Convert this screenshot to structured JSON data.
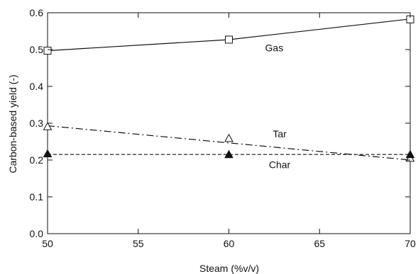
{
  "chart_data": {
    "type": "line",
    "title": "",
    "xlabel": "Steam (%v/v)",
    "ylabel": "Carbon-based yield (-)",
    "xlim": [
      50,
      70
    ],
    "ylim": [
      0.0,
      0.6
    ],
    "xticks": [
      50,
      55,
      60,
      65,
      70
    ],
    "yticks": [
      0.0,
      0.1,
      0.2,
      0.3,
      0.4,
      0.5,
      0.6
    ],
    "x_tick_labels": [
      "50",
      "55",
      "60",
      "65",
      "70"
    ],
    "y_tick_labels": [
      "0.0",
      "0.1",
      "0.2",
      "0.3",
      "0.4",
      "0.5",
      "0.6"
    ],
    "grid": false,
    "legend": "none",
    "series": [
      {
        "name": "Gas",
        "marker": "open-square",
        "line_style": "solid",
        "x": [
          50,
          60,
          70
        ],
        "values": [
          0.497,
          0.527,
          0.582
        ],
        "fit": [
          [
            50,
            0.497
          ],
          [
            60,
            0.527
          ],
          [
            70,
            0.583
          ]
        ]
      },
      {
        "name": "Tar",
        "marker": "open-triangle",
        "line_style": "dash-dot",
        "x": [
          50,
          60,
          70
        ],
        "values": [
          0.29,
          0.258,
          0.204
        ],
        "fit": [
          [
            50,
            0.293
          ],
          [
            70,
            0.2
          ]
        ]
      },
      {
        "name": "Char",
        "marker": "filled-triangle",
        "line_style": "dashed",
        "x": [
          50,
          60,
          70
        ],
        "values": [
          0.216,
          0.214,
          0.214
        ],
        "fit": [
          [
            50,
            0.215
          ],
          [
            70,
            0.215
          ]
        ]
      }
    ],
    "annotations": [
      {
        "text": "Gas",
        "x": 62.5,
        "y": 0.495
      },
      {
        "text": "Tar",
        "x": 62.8,
        "y": 0.262
      },
      {
        "text": "Char",
        "x": 62.8,
        "y": 0.178
      }
    ]
  }
}
